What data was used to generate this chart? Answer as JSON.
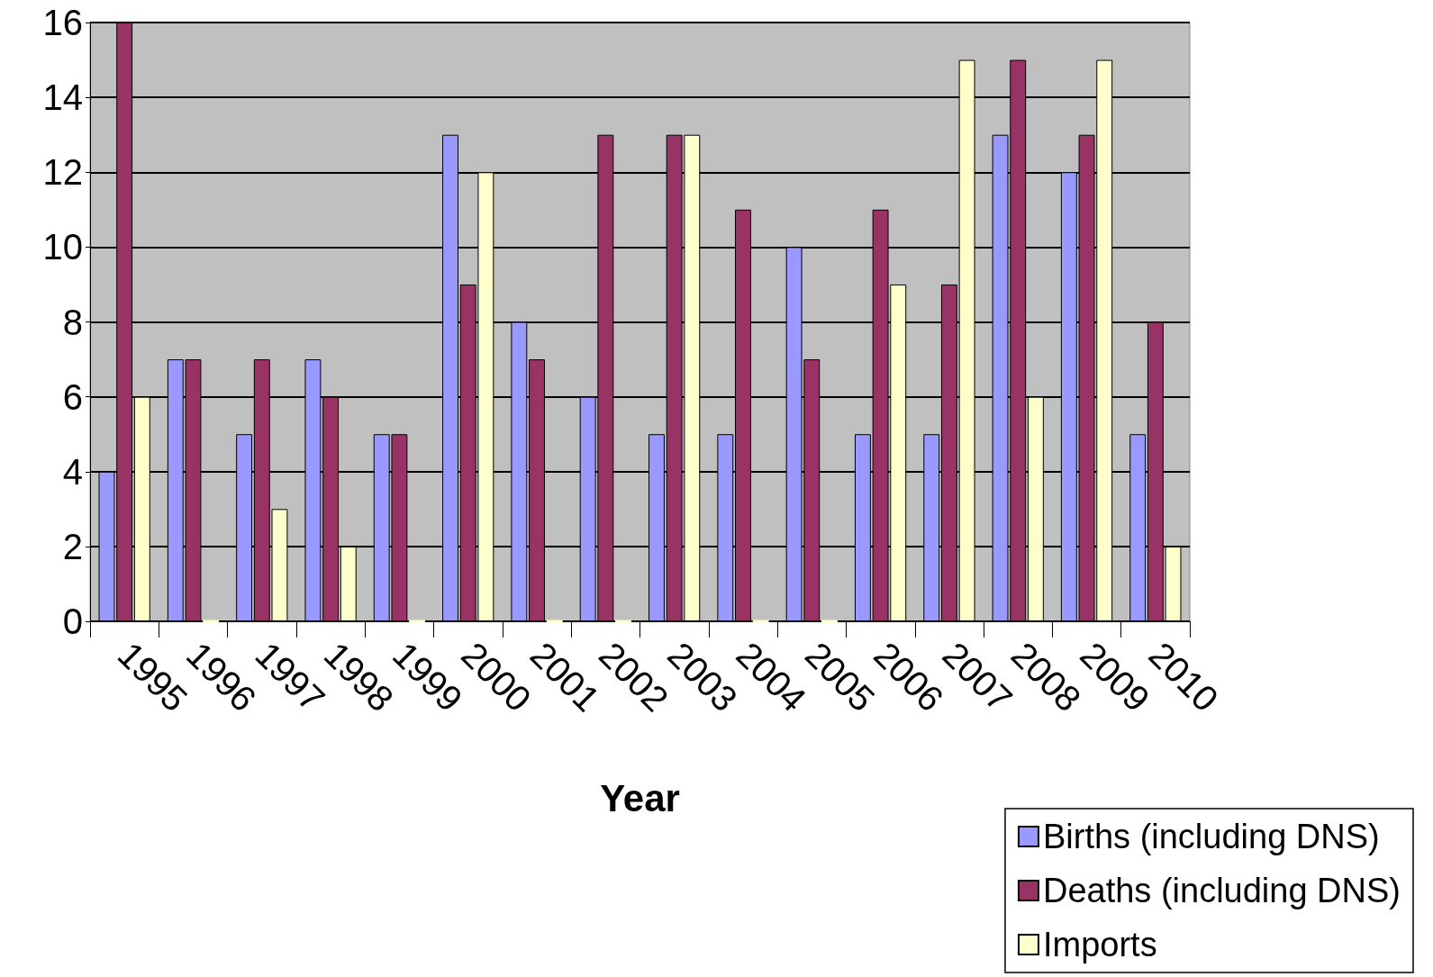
{
  "chart_data": {
    "type": "bar",
    "xlabel": "Year",
    "categories": [
      "1995",
      "1996",
      "1997",
      "1998",
      "1999",
      "2000",
      "2001",
      "2002",
      "2003",
      "2004",
      "2005",
      "2006",
      "2007",
      "2008",
      "2009",
      "2010"
    ],
    "series": [
      {
        "name": "Births (including DNS)",
        "color": "#9999ff",
        "values": [
          4,
          7,
          5,
          7,
          5,
          13,
          8,
          6,
          5,
          5,
          10,
          5,
          5,
          13,
          12,
          5
        ]
      },
      {
        "name": "Deaths (including DNS)",
        "color": "#993366",
        "values": [
          16,
          7,
          7,
          6,
          5,
          9,
          7,
          13,
          13,
          11,
          7,
          11,
          9,
          15,
          13,
          8
        ]
      },
      {
        "name": "Imports",
        "color": "#ffffcc",
        "values": [
          6,
          0,
          3,
          2,
          0,
          12,
          0,
          0,
          13,
          0,
          0,
          9,
          15,
          6,
          15,
          2
        ]
      }
    ],
    "ylim": [
      0,
      16
    ],
    "yticks": [
      0,
      2,
      4,
      6,
      8,
      10,
      12,
      14,
      16
    ],
    "grid": "y",
    "legend": "bottom right"
  }
}
